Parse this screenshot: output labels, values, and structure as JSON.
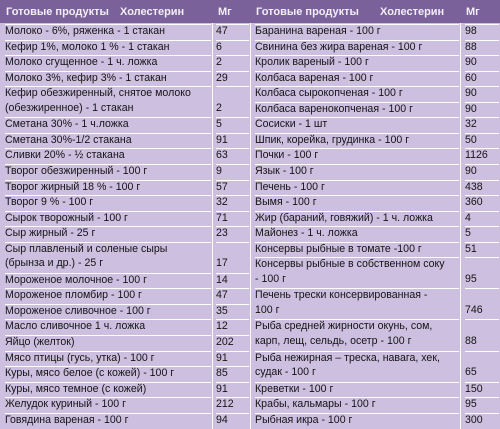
{
  "headers": {
    "left_products": "Готовые продукты",
    "left_cholesterol": "Холестерин",
    "left_mg": "Мг",
    "right_products": "Готовые продукты",
    "right_cholesterol": "Холестерин",
    "right_mg": "Мг"
  },
  "left_rows": [
    {
      "product": "Молоко - 6%, ряженка - 1 стакан",
      "mg": "47"
    },
    {
      "product": "Кефир 1%, молоко 1 % - 1 стакан",
      "mg": "6"
    },
    {
      "product": "Молоко сгущенное - 1 ч. ложка",
      "mg": "2"
    },
    {
      "product": "Молоко 3%, кефир 3% - 1 стакан",
      "mg": "29"
    },
    {
      "product": "Кефир обезжиренный, снятое молоко",
      "mg": ""
    },
    {
      "product": "(обезжиренное) - 1 стакан",
      "mg": "2"
    },
    {
      "product": "Сметана 30% - 1 ч.ложка",
      "mg": "5"
    },
    {
      "product": "Сметана 30%-1/2 стакана",
      "mg": "91"
    },
    {
      "product": "Сливки 20% - ½ стакана",
      "mg": "63"
    },
    {
      "product": "Творог обезжиренный - 100 г",
      "mg": "9"
    },
    {
      "product": "Творог жирный 18 % - 100 г",
      "mg": "57"
    },
    {
      "product": "Творог 9 % - 100 г",
      "mg": "32"
    },
    {
      "product": "Сырок творожный - 100 г",
      "mg": "71"
    },
    {
      "product": "Сыр жирный - 25 г",
      "mg": "23"
    },
    {
      "product": "Сыр плавленый и соленые сыры",
      "mg": ""
    },
    {
      "product": "(брынза и др.) - 25 г",
      "mg": "17"
    },
    {
      "product": "Мороженое молочное - 100 г",
      "mg": "14"
    },
    {
      "product": "Мороженое пломбир - 100 г",
      "mg": "47"
    },
    {
      "product": "Мороженое сливочное - 100 г",
      "mg": "35"
    },
    {
      "product": "Масло сливочное 1 ч. ложка",
      "mg": "12"
    },
    {
      "product": "Яйцо (желток)",
      "mg": "202"
    },
    {
      "product": "Мясо птицы (гусь, утка) - 100 г",
      "mg": "91"
    },
    {
      "product": "Куры, мясо белое (с кожей) - 100 г",
      "mg": "85"
    },
    {
      "product": "Куры, мясо темное (с кожей)",
      "mg": "91"
    },
    {
      "product": "Желудок куриный - 100 г",
      "mg": "212"
    },
    {
      "product": "Говядина вареная - 100 г",
      "mg": "94"
    }
  ],
  "right_rows": [
    {
      "product": "Баранина вареная - 100 г",
      "mg": "98"
    },
    {
      "product": "Свинина без жира вареная - 100 г",
      "mg": "88"
    },
    {
      "product": "Кролик вареный - 100 г",
      "mg": "90"
    },
    {
      "product": "Колбаса вареная - 100 г",
      "mg": "60"
    },
    {
      "product": "Колбаса сырокопченая - 100 г",
      "mg": "90"
    },
    {
      "product": "Колбаса варенокопченая - 100 г",
      "mg": "90"
    },
    {
      "product": "Сосиски - 1 шт",
      "mg": "32"
    },
    {
      "product": "Шпик, корейка, грудинка - 100 г",
      "mg": "50"
    },
    {
      "product": "Почки - 100 г",
      "mg": "1126"
    },
    {
      "product": "Язык - 100 г",
      "mg": "90"
    },
    {
      "product": "Печень - 100 г",
      "mg": "438"
    },
    {
      "product": "Вымя - 100 г",
      "mg": "360"
    },
    {
      "product": "Жир (бараний, говяжий) - 1 ч. ложка",
      "mg": "4"
    },
    {
      "product": "Майонез - 1 ч. ложка",
      "mg": "5"
    },
    {
      "product": "Консервы рыбные в томате -100 г",
      "mg": "51"
    },
    {
      "product": "Консервы рыбные в собственном соку",
      "mg": ""
    },
    {
      "product": "- 100 г",
      "mg": "95"
    },
    {
      "product": "Печень трески консервированная -",
      "mg": ""
    },
    {
      "product": "100 г",
      "mg": "746"
    },
    {
      "product": "Рыба средней жирности окунь, сом,",
      "mg": ""
    },
    {
      "product": "карп, лещ, сельдь, осетр - 100 г",
      "mg": "88"
    },
    {
      "product": "Рыба нежирная – треска, навага, хек,",
      "mg": ""
    },
    {
      "product": "судак - 100 г",
      "mg": "65"
    },
    {
      "product": "Креветки - 100 г",
      "mg": "150"
    },
    {
      "product": "Крабы, кальмары - 100 г",
      "mg": "95"
    },
    {
      "product": "Рыбная икра - 100 г",
      "mg": "300"
    }
  ]
}
